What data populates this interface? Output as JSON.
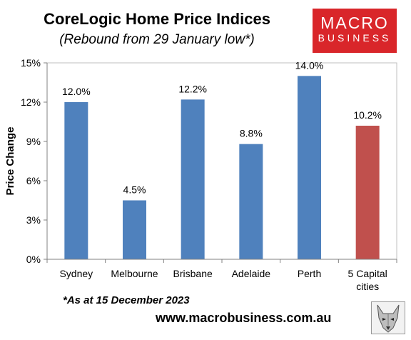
{
  "header": {
    "title": "CoreLogic Home Price Indices",
    "subtitle": "(Rebound from 29 January low*)"
  },
  "logo": {
    "line1": "MACRO",
    "line2": "BUSINESS",
    "color": "#d9262a"
  },
  "footer": {
    "note": "*As at 15 December 2023",
    "website": "www.macrobusiness.com.au",
    "mascot_icon": "wolf-icon"
  },
  "chart_data": {
    "type": "bar",
    "title": "CoreLogic Home Price Indices",
    "subtitle": "(Rebound from 29 January low*)",
    "categories": [
      [
        "Sydney"
      ],
      [
        "Melbourne"
      ],
      [
        "Brisbane"
      ],
      [
        "Adelaide"
      ],
      [
        "Perth"
      ],
      [
        "5 Capital",
        "cities"
      ]
    ],
    "values": [
      12.0,
      4.5,
      12.2,
      8.8,
      14.0,
      10.2
    ],
    "data_labels": [
      "12.0%",
      "4.5%",
      "12.2%",
      "8.8%",
      "14.0%",
      "10.2%"
    ],
    "colors": [
      "#4f81bd",
      "#4f81bd",
      "#4f81bd",
      "#4f81bd",
      "#4f81bd",
      "#c0504d"
    ],
    "xlabel": "",
    "ylabel": "Price Change",
    "ylim": [
      0,
      15
    ],
    "yticks": [
      0,
      3,
      6,
      9,
      12,
      15
    ],
    "ytick_labels": [
      "0%",
      "3%",
      "6%",
      "9%",
      "12%",
      "15%"
    ],
    "grid": false,
    "legend": false
  }
}
